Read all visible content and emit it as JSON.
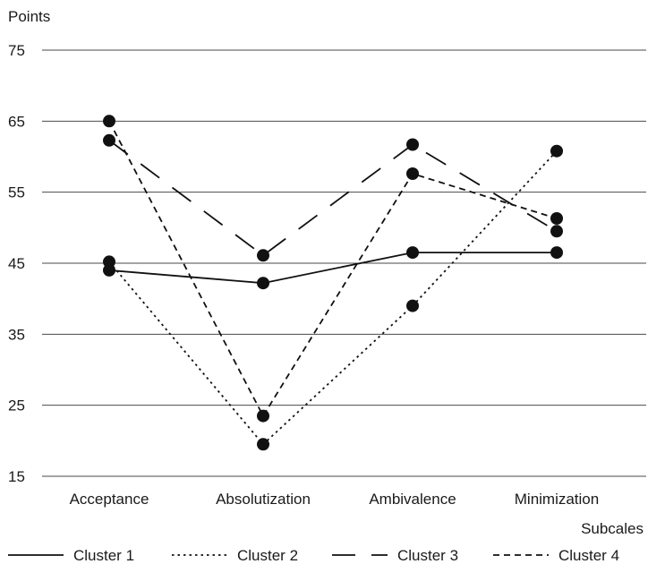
{
  "chart_data": {
    "type": "line",
    "ylabel": "Points",
    "xlabel": "Subcales",
    "ylim": [
      15,
      75
    ],
    "yticks": [
      15,
      25,
      35,
      45,
      55,
      65,
      75
    ],
    "grid": true,
    "legend_position": "bottom",
    "categories": [
      "Acceptance",
      "Absolutization",
      "Ambivalence",
      "Minimization"
    ],
    "series": [
      {
        "name": "Cluster 1",
        "dash": "solid",
        "values": [
          44,
          42.2,
          46.5,
          46.5
        ]
      },
      {
        "name": "Cluster 2",
        "dash": "dotted",
        "values": [
          45.2,
          19.5,
          39,
          60.8
        ]
      },
      {
        "name": "Cluster 3",
        "dash": "long-dash",
        "values": [
          62.3,
          46.1,
          61.7,
          49.5
        ]
      },
      {
        "name": "Cluster 4",
        "dash": "short-dash",
        "values": [
          65,
          23.5,
          57.6,
          51.3
        ]
      }
    ]
  }
}
